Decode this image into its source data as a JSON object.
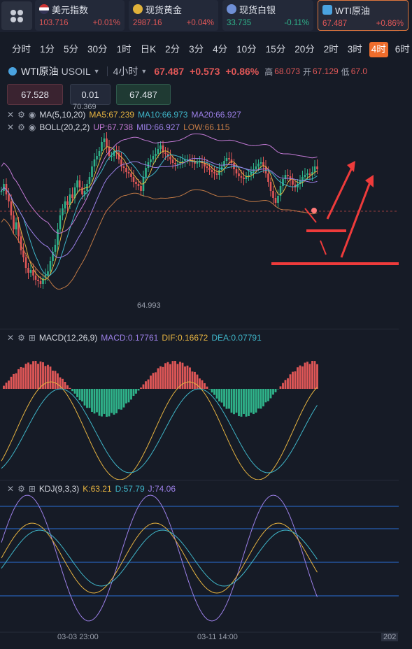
{
  "tickers": [
    {
      "name": "美元指数",
      "price": "103.716",
      "change": "+0.01%",
      "icon": "us-flag-icon",
      "trend": "up"
    },
    {
      "name": "现货黄金",
      "price": "2987.16",
      "change": "+0.04%",
      "icon": "gold-coin-icon",
      "trend": "up"
    },
    {
      "name": "现货白银",
      "price": "33.735",
      "change": "-0.11%",
      "icon": "silver-coin-icon",
      "trend": "down"
    },
    {
      "name": "WTI原油",
      "price": "67.487",
      "change": "+0.86%",
      "icon": "oil-icon",
      "trend": "up",
      "active": true
    }
  ],
  "intervals": [
    "分时",
    "1分",
    "5分",
    "30分",
    "1时",
    "日K",
    "2分",
    "3分",
    "4分",
    "10分",
    "15分",
    "20分",
    "2时",
    "3时",
    "4时",
    "6时"
  ],
  "active_interval": "4时",
  "symbol": {
    "name": "WTI原油",
    "code": "USOIL",
    "timeframe": "4小时",
    "price": "67.487",
    "change": "+0.573",
    "change_pct": "+0.86%",
    "high_label": "高",
    "high": "68.073",
    "open_label": "开",
    "open": "67.129",
    "low_label": "低",
    "low": "67.0"
  },
  "quote": {
    "bid": "67.528",
    "lot": "0.01",
    "ask": "67.487"
  },
  "indicators": {
    "ma": {
      "label": "MA(5,10,20)",
      "ma5": "MA5:67.239",
      "ma10": "MA10:66.973",
      "ma20": "MA20:66.927"
    },
    "boll": {
      "label": "BOLL(20,2,2)",
      "up": "UP:67.738",
      "mid": "MID:66.927",
      "low": "LOW:66.115"
    },
    "macd": {
      "label": "MACD(12,26,9)",
      "macd": "MACD:0.17761",
      "dif": "DIF:0.16672",
      "dea": "DEA:0.07791"
    },
    "kdj": {
      "label": "KDJ(9,3,3)",
      "k": "K:63.21",
      "d": "D:57.79",
      "j": "J:74.06"
    }
  },
  "price_marks": {
    "high": "70.369",
    "low": "64.993"
  },
  "time_axis": [
    "03-03 23:00",
    "03-11 14:00",
    "202"
  ],
  "colors": {
    "up": "#e05757",
    "down": "#2fb38a",
    "active": "#ef6d2c",
    "ma5": "#e6b340",
    "ma10": "#3fb6c9",
    "ma20": "#9b7fe6",
    "boll_up": "#c47ad6",
    "boll_low": "#c27a45",
    "annotation": "#ee3b3b"
  }
}
